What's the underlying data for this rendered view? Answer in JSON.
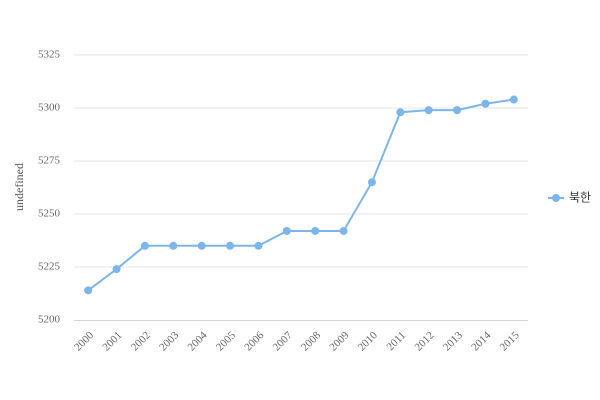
{
  "chart_data": {
    "type": "line",
    "y_label": "undefined",
    "categories": [
      "2000",
      "2001",
      "2002",
      "2003",
      "2004",
      "2005",
      "2006",
      "2007",
      "2008",
      "2009",
      "2010",
      "2011",
      "2012",
      "2013",
      "2014",
      "2015"
    ],
    "series": [
      {
        "name": "북한",
        "color": "#7cb5ec",
        "values": [
          5214,
          5224,
          5235,
          5235,
          5235,
          5235,
          5235,
          5242,
          5242,
          5242,
          5265,
          5298,
          5299,
          5299,
          5302,
          5304
        ]
      }
    ],
    "ylim": [
      5200,
      5325
    ],
    "yticks": [
      5200,
      5225,
      5250,
      5275,
      5300,
      5325
    ],
    "grid": true,
    "legend": "right"
  }
}
